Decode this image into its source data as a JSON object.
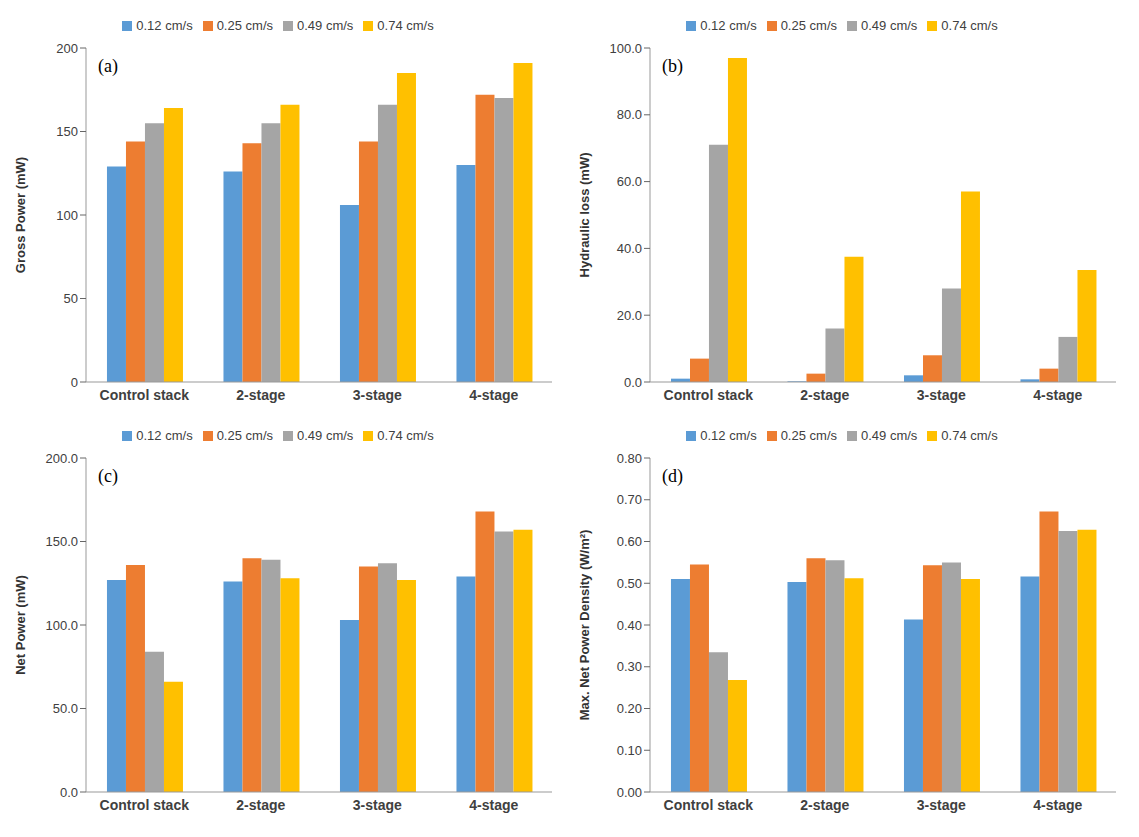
{
  "chart_data": [
    {
      "type": "bar",
      "annotations": [
        "(a)"
      ],
      "y_label": "Gross Power (mW)",
      "categories": [
        "Control stack",
        "2-stage",
        "3-stage",
        "4-stage"
      ],
      "series": [
        {
          "name": "0.12 cm/s",
          "color": "#5b9bd5",
          "values": [
            129,
            126,
            106,
            130
          ]
        },
        {
          "name": "0.25 cm/s",
          "color": "#ed7d31",
          "values": [
            144,
            143,
            144,
            172
          ]
        },
        {
          "name": "0.49 cm/s",
          "color": "#a5a5a5",
          "values": [
            155,
            155,
            166,
            170
          ]
        },
        {
          "name": "0.74 cm/s",
          "color": "#ffc000",
          "values": [
            164,
            166,
            185,
            191
          ]
        }
      ],
      "ylim": [
        0,
        200
      ],
      "yticks": [
        0,
        50,
        100,
        150,
        200
      ],
      "grid": false,
      "legend": "top"
    },
    {
      "type": "bar",
      "annotations": [
        "(b)"
      ],
      "y_label": "Hydraulic loss (mW)",
      "categories": [
        "Control stack",
        "2-stage",
        "3-stage",
        "4-stage"
      ],
      "series": [
        {
          "name": "0.12 cm/s",
          "color": "#5b9bd5",
          "values": [
            1,
            0.2,
            2,
            0.8
          ]
        },
        {
          "name": "0.25 cm/s",
          "color": "#ed7d31",
          "values": [
            7,
            2.5,
            8,
            4
          ]
        },
        {
          "name": "0.49 cm/s",
          "color": "#a5a5a5",
          "values": [
            71,
            16,
            28,
            13.5
          ]
        },
        {
          "name": "0.74 cm/s",
          "color": "#ffc000",
          "values": [
            97,
            37.5,
            57,
            33.5
          ]
        }
      ],
      "ylim": [
        0,
        100
      ],
      "yticks": [
        {
          "value": 0,
          "label": "0.0"
        },
        {
          "value": 20,
          "label": "20.0"
        },
        {
          "value": 40,
          "label": "40.0"
        },
        {
          "value": 60,
          "label": "60.0"
        },
        {
          "value": 80,
          "label": "80.0"
        },
        {
          "value": 100,
          "label": "100.0"
        }
      ],
      "grid": false,
      "legend": "top"
    },
    {
      "type": "bar",
      "annotations": [
        "(c)"
      ],
      "y_label": "Net Power (mW)",
      "categories": [
        "Control stack",
        "2-stage",
        "3-stage",
        "4-stage"
      ],
      "series": [
        {
          "name": "0.12 cm/s",
          "color": "#5b9bd5",
          "values": [
            127,
            126,
            103,
            129
          ]
        },
        {
          "name": "0.25 cm/s",
          "color": "#ed7d31",
          "values": [
            136,
            140,
            135,
            168
          ]
        },
        {
          "name": "0.49 cm/s",
          "color": "#a5a5a5",
          "values": [
            84,
            139,
            137,
            156
          ]
        },
        {
          "name": "0.74 cm/s",
          "color": "#ffc000",
          "values": [
            66,
            128,
            127,
            157
          ]
        }
      ],
      "ylim": [
        0,
        200
      ],
      "yticks": [
        {
          "value": 0,
          "label": "0.0"
        },
        {
          "value": 50,
          "label": "50.0"
        },
        {
          "value": 100,
          "label": "100.0"
        },
        {
          "value": 150,
          "label": "150.0"
        },
        {
          "value": 200,
          "label": "200.0"
        }
      ],
      "grid": false,
      "legend": "top"
    },
    {
      "type": "bar",
      "annotations": [
        "(d)"
      ],
      "y_label": "Max. Net Power Density (W/m²)",
      "categories": [
        "Control stack",
        "2-stage",
        "3-stage",
        "4-stage"
      ],
      "series": [
        {
          "name": "0.12 cm/s",
          "color": "#5b9bd5",
          "values": [
            0.51,
            0.503,
            0.413,
            0.516
          ]
        },
        {
          "name": "0.25 cm/s",
          "color": "#ed7d31",
          "values": [
            0.545,
            0.56,
            0.543,
            0.672
          ]
        },
        {
          "name": "0.49 cm/s",
          "color": "#a5a5a5",
          "values": [
            0.335,
            0.555,
            0.55,
            0.625
          ]
        },
        {
          "name": "0.74 cm/s",
          "color": "#ffc000",
          "values": [
            0.268,
            0.512,
            0.51,
            0.628
          ]
        }
      ],
      "ylim": [
        0,
        0.8
      ],
      "yticks": [
        {
          "value": 0,
          "label": "0.00"
        },
        {
          "value": 0.1,
          "label": "0.10"
        },
        {
          "value": 0.2,
          "label": "0.20"
        },
        {
          "value": 0.3,
          "label": "0.30"
        },
        {
          "value": 0.4,
          "label": "0.40"
        },
        {
          "value": 0.5,
          "label": "0.50"
        },
        {
          "value": 0.6,
          "label": "0.60"
        },
        {
          "value": 0.7,
          "label": "0.70"
        },
        {
          "value": 0.8,
          "label": "0.80"
        }
      ],
      "grid": false,
      "legend": "top"
    }
  ]
}
